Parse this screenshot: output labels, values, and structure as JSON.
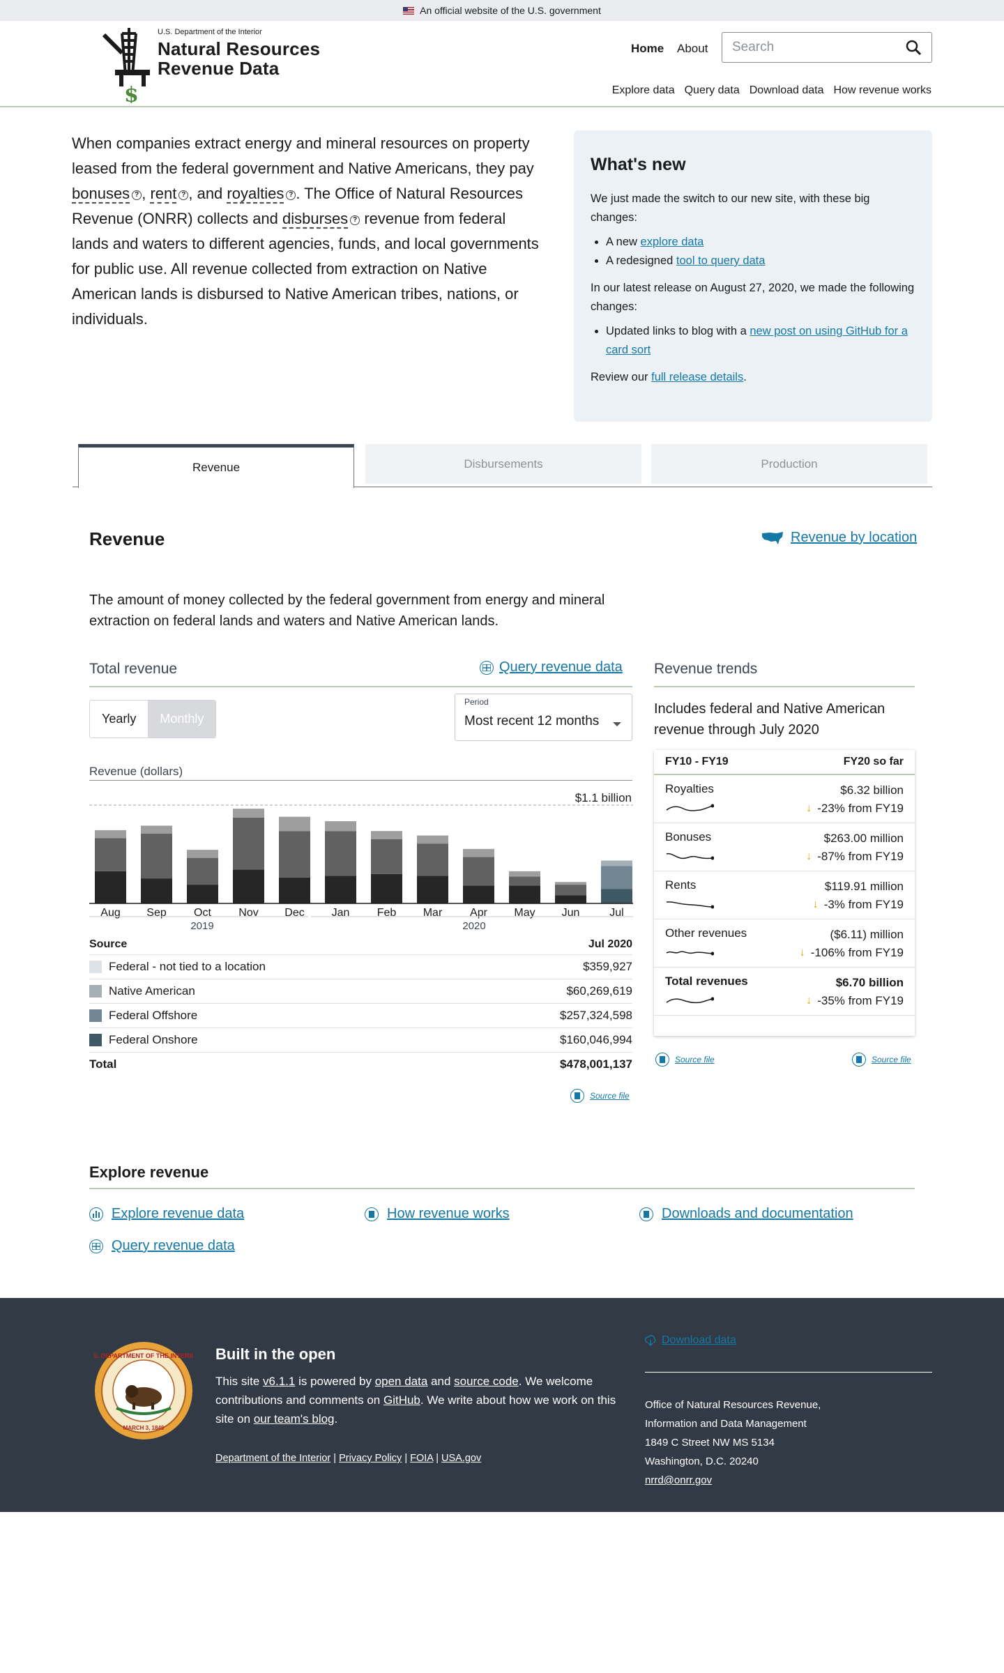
{
  "banner": {
    "text": "An official website of the U.S. government"
  },
  "header": {
    "dept": "U.S. Department of the Interior",
    "title_line1": "Natural Resources",
    "title_line2": "Revenue Data",
    "nav": {
      "home": "Home",
      "about": "About"
    },
    "search_placeholder": "Search",
    "subnav": [
      "Explore data",
      "Query data",
      "Download data",
      "How revenue works"
    ]
  },
  "intro": {
    "p1": "When companies extract energy and mineral resources on property leased from the federal government and Native Americans, they pay",
    "bonuses": "bonuses",
    "sep1": ",",
    "rent": "rent",
    "sep2": ", and",
    "royalties": "royalties",
    "p2": ". The Office of Natural Resources Revenue (ONRR) collects and",
    "disburses": "disburses",
    "p3": "revenue from federal lands and waters to different agencies, funds, and local governments for public use. All revenue collected from extraction on Native American lands is disbursed to Native American tribes, nations, or individuals."
  },
  "whats_new": {
    "title": "What's new",
    "intro": "We just made the switch to our new site, with these big changes:",
    "items": [
      {
        "prefix": "A new ",
        "link": "explore data"
      },
      {
        "prefix": "A redesigned ",
        "link": "tool to query data"
      }
    ],
    "release_text": "In our latest release on August 27, 2020, we made the following changes:",
    "release_item_prefix": "Updated links to blog with a ",
    "release_item_link": "new post on using GitHub for a card sort",
    "review_prefix": "Review our ",
    "review_link": "full release details",
    "review_suffix": "."
  },
  "tabs": [
    "Revenue",
    "Disbursements",
    "Production"
  ],
  "revenue": {
    "title": "Revenue",
    "by_location": "Revenue by location",
    "description": "The amount of money collected by the federal government from energy and mineral extraction on federal lands and waters and Native American lands.",
    "total_title": "Total revenue",
    "query_link": "Query revenue data",
    "toggle": {
      "yearly": "Yearly",
      "monthly": "Monthly"
    },
    "period_label": "Period",
    "period_value": "Most recent 12 months",
    "chart_label": "Revenue (dollars)"
  },
  "chart_data": {
    "type": "bar",
    "stacked": true,
    "max_label": "$1.1 billion",
    "ylim": [
      0,
      1.1
    ],
    "categories": [
      "Aug",
      "Sep",
      "Oct",
      "Nov",
      "Dec",
      "Jan",
      "Feb",
      "Mar",
      "Apr",
      "May",
      "Jun",
      "Jul"
    ],
    "year_labels": [
      "2019",
      "2020"
    ],
    "series": [
      {
        "name": "Federal Onshore",
        "values": [
          0.36,
          0.28,
          0.21,
          0.38,
          0.29,
          0.31,
          0.33,
          0.31,
          0.2,
          0.2,
          0.09,
          0.16
        ]
      },
      {
        "name": "Federal Offshore",
        "values": [
          0.37,
          0.5,
          0.3,
          0.58,
          0.52,
          0.5,
          0.39,
          0.36,
          0.32,
          0.1,
          0.12,
          0.26
        ]
      },
      {
        "name": "Native American",
        "values": [
          0.09,
          0.09,
          0.09,
          0.1,
          0.16,
          0.11,
          0.09,
          0.09,
          0.09,
          0.06,
          0.03,
          0.06
        ]
      },
      {
        "name": "Federal - not tied to a location",
        "values": [
          0.0,
          0.0,
          0.0,
          0.0,
          0.0,
          0.0,
          0.0,
          0.0,
          0.0,
          0.0,
          0.0,
          0.0
        ]
      }
    ],
    "highlight_index": 11
  },
  "source_table": {
    "header_source": "Source",
    "header_period": "Jul 2020",
    "rows": [
      {
        "label": "Federal - not tied to a location",
        "value": "$359,927",
        "color": "#dce2e6"
      },
      {
        "label": "Native American",
        "value": "$60,269,619",
        "color": "#a4afb6"
      },
      {
        "label": "Federal Offshore",
        "value": "$257,324,598",
        "color": "#728592"
      },
      {
        "label": "Federal Onshore",
        "value": "$160,046,994",
        "color": "#3e5866"
      }
    ],
    "total_label": "Total",
    "total_value": "$478,001,137",
    "source_file": "Source file"
  },
  "trends": {
    "title": "Revenue trends",
    "description": "Includes federal and Native American revenue through July 2020",
    "col1": "FY10 - FY19",
    "col2": "FY20 so far",
    "rows": [
      {
        "name": "Royalties",
        "value": "$6.32 billion",
        "change": "-23% from FY19"
      },
      {
        "name": "Bonuses",
        "value": "$263.00 million",
        "change": "-87% from FY19"
      },
      {
        "name": "Rents",
        "value": "$119.91 million",
        "change": "-3% from FY19"
      },
      {
        "name": "Other revenues",
        "value": "($6.11) million",
        "change": "-106% from FY19"
      },
      {
        "name": "Total revenues",
        "value": "$6.70 billion",
        "change": "-35% from FY19"
      }
    ],
    "source_file": "Source file"
  },
  "explore": {
    "title": "Explore revenue",
    "links": [
      "Explore revenue data",
      "How revenue works",
      "Downloads and documentation",
      "Query revenue data"
    ]
  },
  "footer": {
    "built_title": "Built in the open",
    "t1": "This site ",
    "version": "v6.1.1",
    "t2": " is powered by ",
    "open_data": "open data",
    "t3": " and ",
    "source_code": "source code",
    "t4": ". We welcome contributions and comments on ",
    "github": "GitHub",
    "t5": ". We write about how we work on this site on ",
    "blog": "our team's blog",
    "t6": ".",
    "links": [
      "Department of the Interior",
      "Privacy Policy",
      "FOIA",
      "USA.gov"
    ],
    "download": "Download data",
    "contact": [
      "Office of Natural Resources Revenue,",
      "Information and Data Management",
      "1849 C Street NW MS 5134",
      "Washington, D.C. 20240"
    ],
    "email": "nrrd@onrr.gov",
    "seal_text": "U.S. DEPARTMENT OF THE INTERIOR",
    "seal_date": "MARCH 3, 1849"
  },
  "colors": {
    "accent": "#1478a6",
    "rule": "#bcc9b2",
    "footer_bg": "#323a45",
    "down": "#e5a000"
  }
}
